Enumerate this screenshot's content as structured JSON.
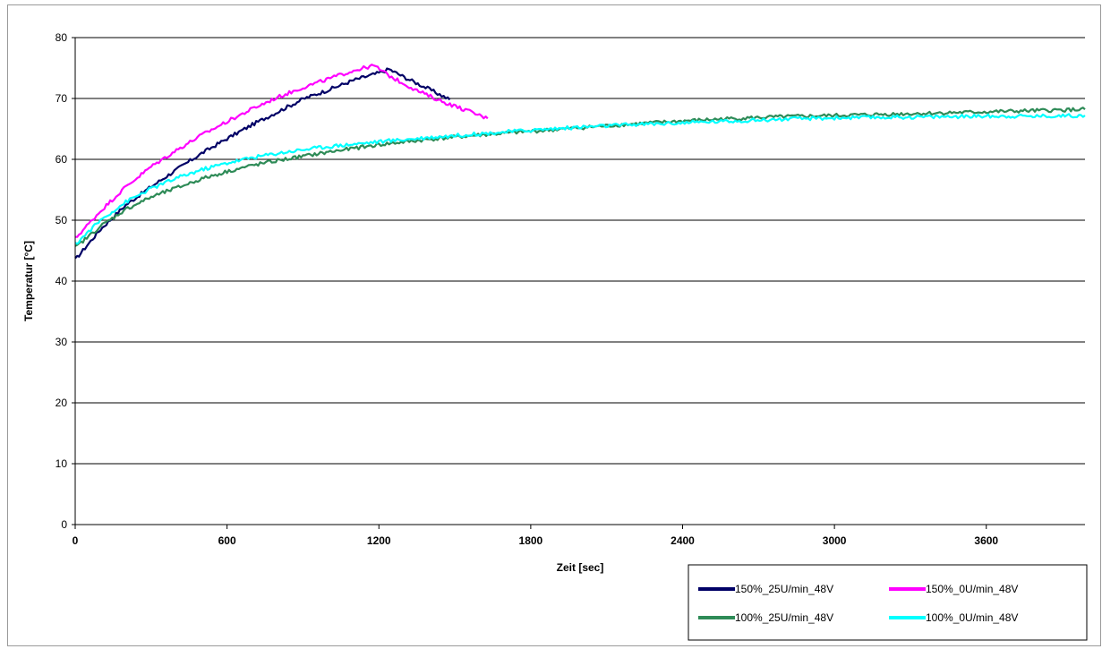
{
  "chart_data": {
    "type": "line",
    "title": "",
    "xlabel": "Zeit [sec]",
    "ylabel": "Temperatur [°C]",
    "xlim": [
      0,
      3990
    ],
    "ylim": [
      0,
      80
    ],
    "xticks": [
      0,
      600,
      1200,
      1800,
      2400,
      3000,
      3600
    ],
    "yticks": [
      0,
      10,
      20,
      30,
      40,
      50,
      60,
      70,
      80
    ],
    "grid": "horizontal",
    "legend_position": "bottom-right",
    "series": [
      {
        "name": "150%_25U/min_48V",
        "color": "#000066",
        "x": [
          0,
          100,
          200,
          300,
          400,
          500,
          600,
          700,
          800,
          900,
          1000,
          1100,
          1200,
          1240,
          1300,
          1400,
          1480
        ],
        "y": [
          43.5,
          48.5,
          52.5,
          55.5,
          58.3,
          61.0,
          63.4,
          65.7,
          67.8,
          69.9,
          71.4,
          73.0,
          74.2,
          74.8,
          73.5,
          71.5,
          69.8
        ]
      },
      {
        "name": "150%_0U/min_48V",
        "color": "#ff00ff",
        "x": [
          0,
          100,
          200,
          300,
          400,
          500,
          600,
          700,
          800,
          900,
          1000,
          1100,
          1180,
          1250,
          1350,
          1450,
          1550,
          1630
        ],
        "y": [
          47.0,
          51.5,
          55.5,
          58.8,
          61.5,
          64.0,
          66.2,
          68.3,
          70.2,
          71.8,
          73.2,
          74.6,
          75.4,
          73.5,
          71.3,
          69.5,
          68.0,
          66.7
        ]
      },
      {
        "name": "100%_25U/min_48V",
        "color": "#2e8b57",
        "x": [
          0,
          100,
          200,
          300,
          400,
          500,
          600,
          700,
          800,
          900,
          1000,
          1200,
          1400,
          1600,
          1800,
          2000,
          2200,
          2400,
          2600,
          2800,
          3000,
          3200,
          3400,
          3600,
          3800,
          3990
        ],
        "y": [
          45.5,
          49.0,
          51.8,
          53.8,
          55.3,
          56.8,
          58.0,
          59.0,
          59.8,
          60.5,
          61.2,
          62.4,
          63.3,
          64.0,
          64.6,
          65.2,
          65.8,
          66.3,
          66.7,
          67.0,
          67.2,
          67.4,
          67.6,
          67.8,
          68.0,
          68.2
        ]
      },
      {
        "name": "100%_0U/min_48V",
        "color": "#00ffff",
        "x": [
          0,
          100,
          200,
          300,
          400,
          500,
          600,
          700,
          800,
          900,
          1000,
          1200,
          1400,
          1600,
          1800,
          2000,
          2200,
          2400,
          2600,
          2800,
          3000,
          3200,
          3400,
          3600,
          3800,
          3990
        ],
        "y": [
          46.0,
          50.0,
          53.0,
          55.2,
          56.9,
          58.3,
          59.4,
          60.3,
          61.0,
          61.6,
          62.1,
          62.9,
          63.6,
          64.2,
          64.8,
          65.3,
          65.7,
          66.0,
          66.3,
          66.6,
          66.8,
          66.9,
          67.0,
          67.1,
          67.1,
          67.2
        ]
      }
    ]
  }
}
